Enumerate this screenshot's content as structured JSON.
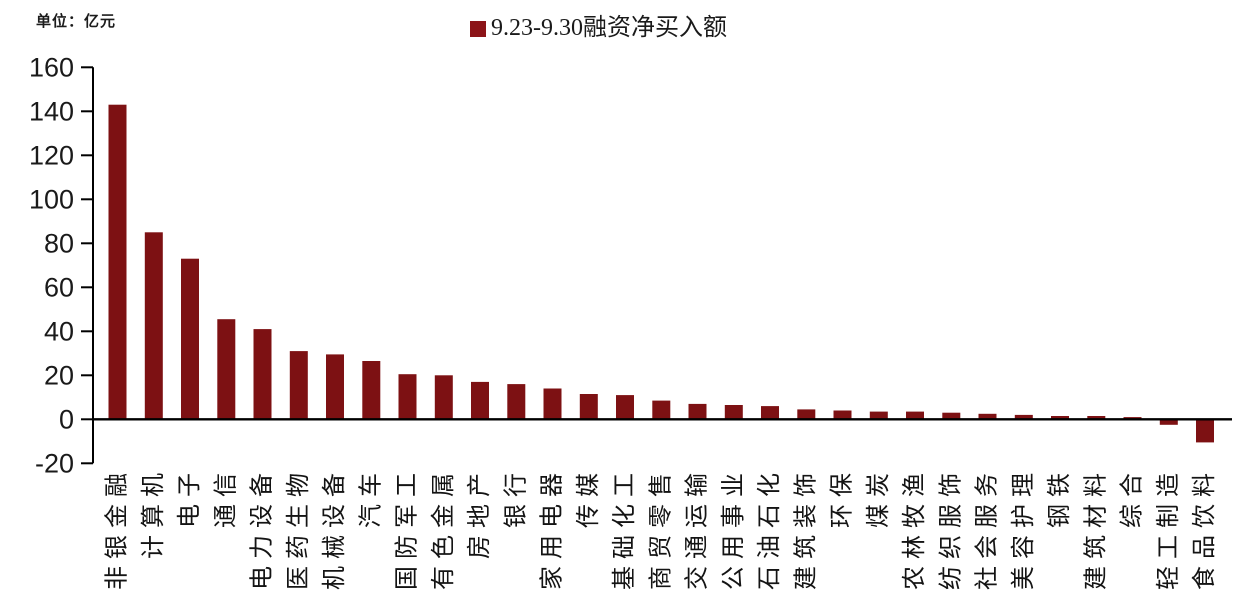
{
  "page": {
    "background": "#ffffff"
  },
  "header": {
    "unit_label": "单位：亿元",
    "legend": {
      "marker_color": "#8C1418",
      "label": "9.23-9.30融资净买入额"
    }
  },
  "chart_data": {
    "type": "bar",
    "title": "9.23-9.30融资净买入额",
    "unit": "亿元",
    "legend_position": "top-center",
    "grid": false,
    "bar_color": "#7D1113",
    "axis_color": "#000000",
    "tick_label_color": "#1a1a1a",
    "ylim": [
      -20,
      160
    ],
    "ytick_interval": 20,
    "ytick_labels": [
      "-20",
      "0",
      "20",
      "40",
      "60",
      "80",
      "100",
      "120",
      "140",
      "160"
    ],
    "categories": [
      "非银金融",
      "计算机",
      "电子",
      "通信",
      "电力设备",
      "医药生物",
      "机械设备",
      "汽车",
      "国防军工",
      "有色金属",
      "房地产",
      "银行",
      "家用电器",
      "传媒",
      "基础化工",
      "商贸零售",
      "交通运输",
      "公用事业",
      "石油石化",
      "建筑装饰",
      "环保",
      "煤炭",
      "农林牧渔",
      "纺织服饰",
      "社会服务",
      "美容护理",
      "钢铁",
      "建筑材料",
      "综合",
      "轻工制造",
      "食品饮料"
    ],
    "values": [
      143,
      85,
      73,
      45.5,
      41,
      31,
      29.5,
      26.5,
      20.5,
      20,
      17,
      16,
      14,
      11.5,
      11,
      8.5,
      7,
      6.5,
      6,
      4.5,
      4,
      3.5,
      3.5,
      3,
      2.5,
      2,
      1.5,
      1.5,
      1,
      -2.5,
      -10.5
    ],
    "xlabel": "",
    "ylabel": "单位：亿元"
  }
}
